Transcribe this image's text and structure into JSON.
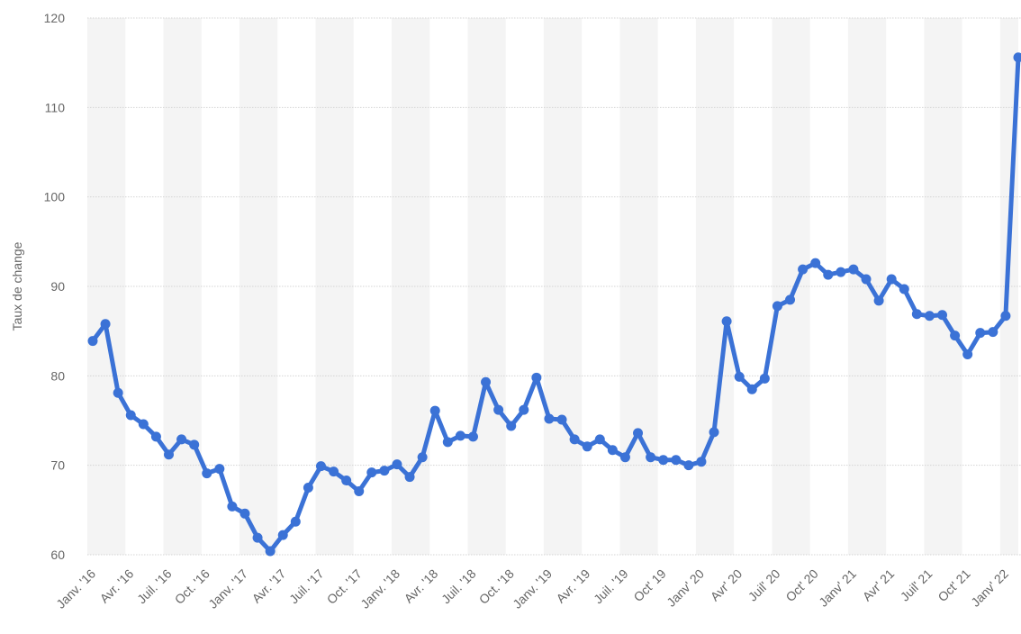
{
  "chart_data": {
    "type": "line",
    "xlabel": "",
    "ylabel": "Taux de change",
    "ylim": [
      60,
      120
    ],
    "yticks": [
      60,
      70,
      80,
      90,
      100,
      110,
      120
    ],
    "grid": true,
    "x_tick_labels": [
      "Janv. '16",
      "Avr. '16",
      "Juil. '16",
      "Oct. '16",
      "Janv. '17",
      "Avr. '17",
      "Juil. '17",
      "Oct. '17",
      "Janv. '18",
      "Avr. '18",
      "Juil. '18",
      "Oct. '18",
      "Janv. '19",
      "Avr. '19",
      "Juil. '19",
      "Oct' 19",
      "Janv' 20",
      "Avr' 20",
      "Juil' 20",
      "Oct' 20",
      "Janv' 21",
      "Avr' 21",
      "Juil' 21",
      "Oct' 21",
      "Janv' 22"
    ],
    "x": [
      "2016-01",
      "2016-02",
      "2016-03",
      "2016-04",
      "2016-05",
      "2016-06",
      "2016-07",
      "2016-08",
      "2016-09",
      "2016-10",
      "2016-11",
      "2016-12",
      "2017-01",
      "2017-02",
      "2017-03",
      "2017-04",
      "2017-05",
      "2017-06",
      "2017-07",
      "2017-08",
      "2017-09",
      "2017-10",
      "2017-11",
      "2017-12",
      "2018-01",
      "2018-02",
      "2018-03",
      "2018-04",
      "2018-05",
      "2018-06",
      "2018-07",
      "2018-08",
      "2018-09",
      "2018-10",
      "2018-11",
      "2018-12",
      "2019-01",
      "2019-02",
      "2019-03",
      "2019-04",
      "2019-05",
      "2019-06",
      "2019-07",
      "2019-08",
      "2019-09",
      "2019-10",
      "2019-11",
      "2019-12",
      "2020-01",
      "2020-02",
      "2020-03",
      "2020-04",
      "2020-05",
      "2020-06",
      "2020-07",
      "2020-08",
      "2020-09",
      "2020-10",
      "2020-11",
      "2020-12",
      "2021-01",
      "2021-02",
      "2021-03",
      "2021-04",
      "2021-05",
      "2021-06",
      "2021-07",
      "2021-08",
      "2021-09",
      "2021-10",
      "2021-11",
      "2021-12",
      "2022-01",
      "2022-02"
    ],
    "series": [
      {
        "color": "#3b72d6",
        "values": [
          83.9,
          85.8,
          78.1,
          75.6,
          74.6,
          73.2,
          71.2,
          72.9,
          72.3,
          69.1,
          69.6,
          65.4,
          64.6,
          61.9,
          60.4,
          62.2,
          63.7,
          67.5,
          69.9,
          69.3,
          68.3,
          67.1,
          69.2,
          69.4,
          70.1,
          68.7,
          70.9,
          76.1,
          72.6,
          73.3,
          73.2,
          79.3,
          76.2,
          74.4,
          76.2,
          79.8,
          75.2,
          75.1,
          72.9,
          72.1,
          72.9,
          71.7,
          70.9,
          73.6,
          70.9,
          70.6,
          70.6,
          70.0,
          70.4,
          73.7,
          86.1,
          79.9,
          78.5,
          79.7,
          87.8,
          88.5,
          91.9,
          92.6,
          91.3,
          91.6,
          91.9,
          90.8,
          88.4,
          90.8,
          89.7,
          86.9,
          86.7,
          86.8,
          84.5,
          82.4,
          84.8,
          84.9,
          86.7,
          115.6
        ]
      }
    ]
  }
}
